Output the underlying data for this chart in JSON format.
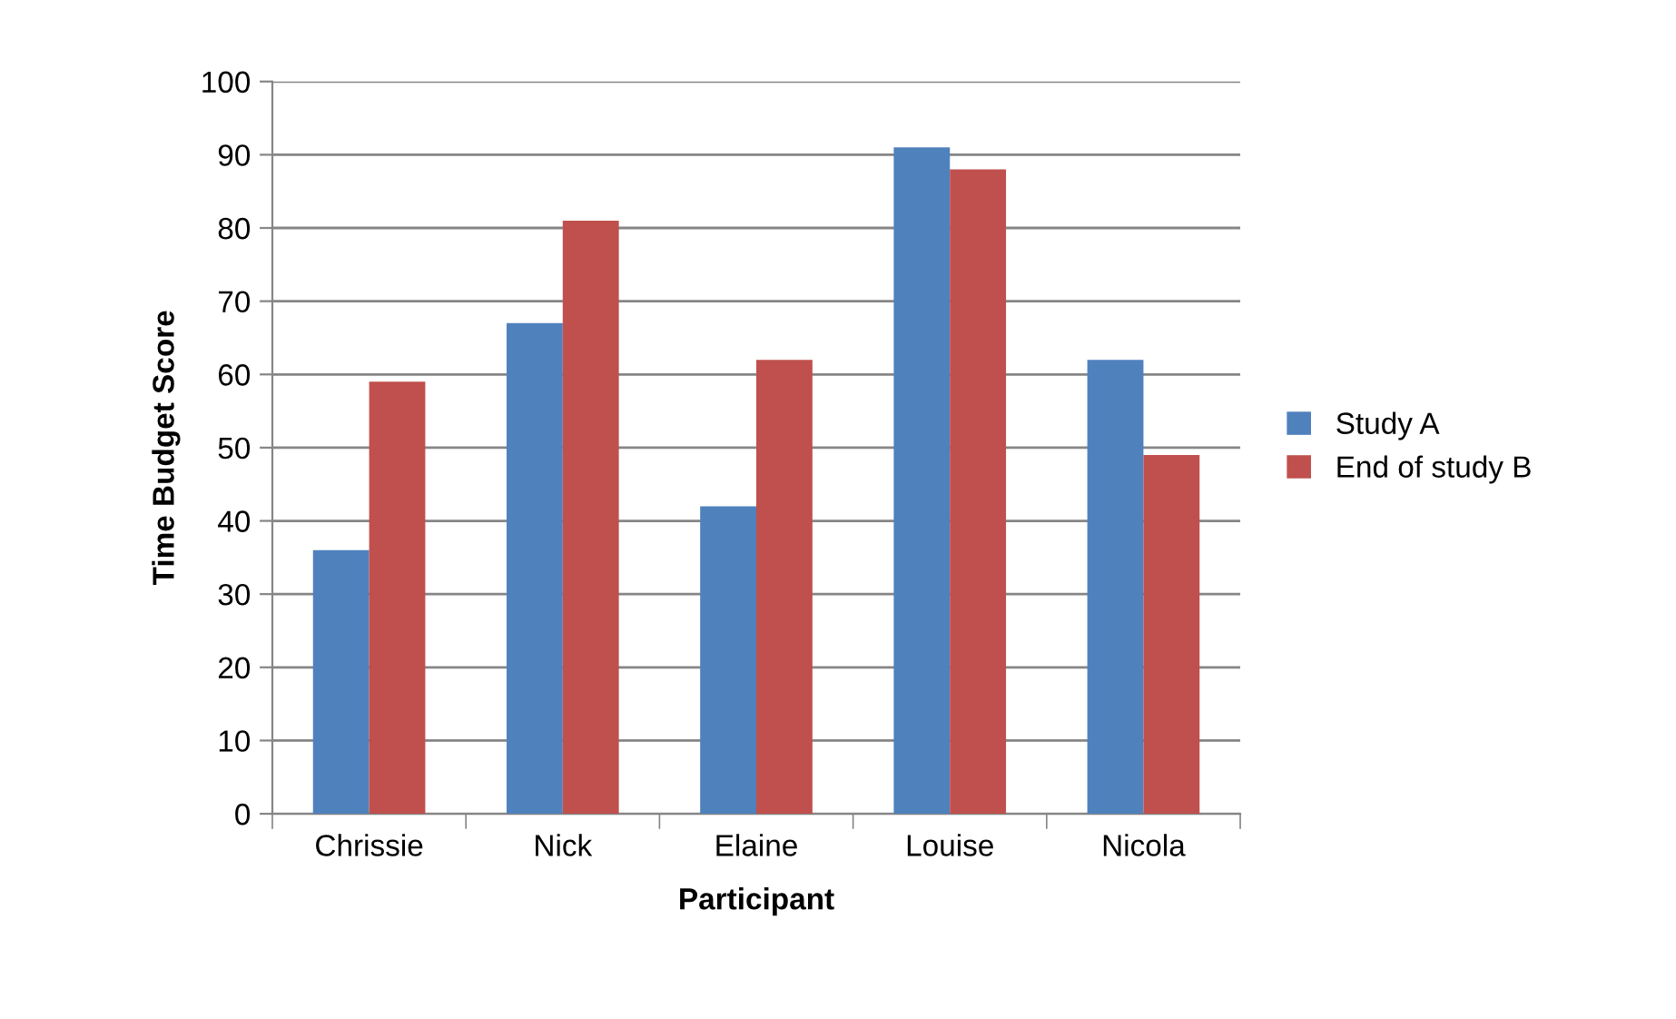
{
  "chart_data": {
    "type": "bar",
    "xlabel": "Participant",
    "ylabel": "Time Budget Score",
    "categories": [
      "Chrissie",
      "Nick",
      "Elaine",
      "Louise",
      "Nicola"
    ],
    "series": [
      {
        "name": "Study A",
        "color": "#4f81bd",
        "values": [
          36,
          67,
          42,
          91,
          62
        ]
      },
      {
        "name": "End of study B",
        "color": "#c0504d",
        "values": [
          59,
          81,
          62,
          88,
          49
        ]
      }
    ],
    "ylim": [
      0,
      100
    ],
    "yticks": [
      0,
      10,
      20,
      30,
      40,
      50,
      60,
      70,
      80,
      90,
      100
    ],
    "grid": "y",
    "legend": "right"
  }
}
